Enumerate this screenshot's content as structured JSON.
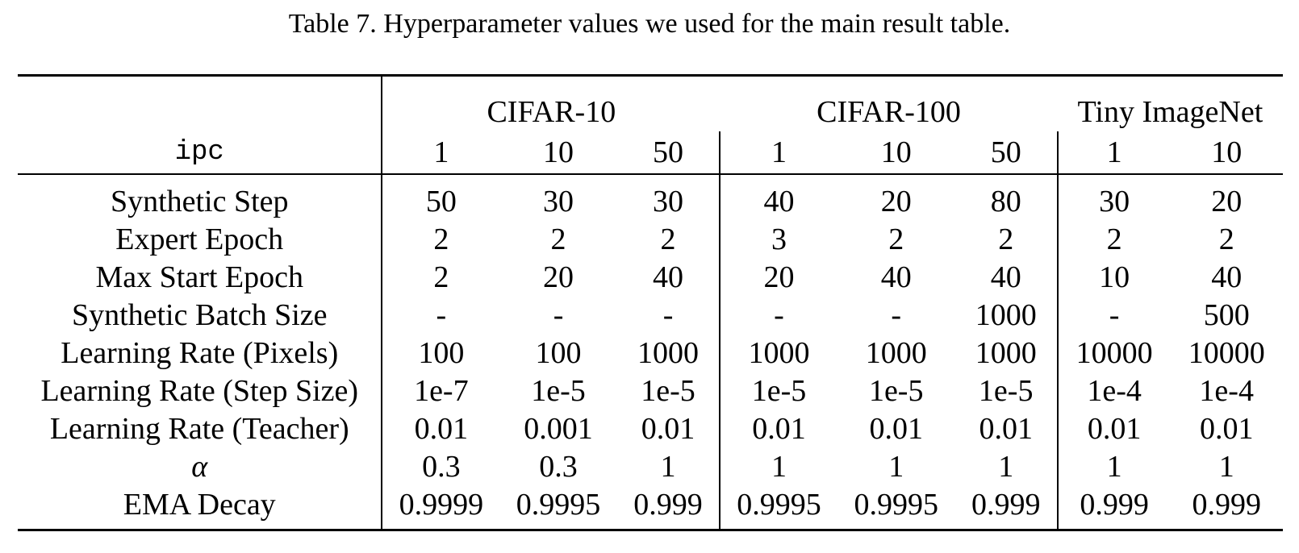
{
  "caption": "Table 7. Hyperparameter values we used for the main result table.",
  "header": {
    "ipc_label": "ipc",
    "datasets": [
      "CIFAR-10",
      "CIFAR-100",
      "Tiny ImageNet"
    ],
    "ipc_values": [
      "1",
      "10",
      "50",
      "1",
      "10",
      "50",
      "1",
      "10"
    ]
  },
  "rows": [
    {
      "label": "Synthetic Step",
      "values": [
        "50",
        "30",
        "30",
        "40",
        "20",
        "80",
        "30",
        "20"
      ]
    },
    {
      "label": "Expert Epoch",
      "values": [
        "2",
        "2",
        "2",
        "3",
        "2",
        "2",
        "2",
        "2"
      ]
    },
    {
      "label": "Max Start Epoch",
      "values": [
        "2",
        "20",
        "40",
        "20",
        "40",
        "40",
        "10",
        "40"
      ]
    },
    {
      "label": "Synthetic Batch Size",
      "values": [
        "-",
        "-",
        "-",
        "-",
        "-",
        "1000",
        "-",
        "500"
      ]
    },
    {
      "label": "Learning Rate (Pixels)",
      "values": [
        "100",
        "100",
        "1000",
        "1000",
        "1000",
        "1000",
        "10000",
        "10000"
      ]
    },
    {
      "label": "Learning Rate (Step Size)",
      "values": [
        "1e-7",
        "1e-5",
        "1e-5",
        "1e-5",
        "1e-5",
        "1e-5",
        "1e-4",
        "1e-4"
      ]
    },
    {
      "label": "Learning Rate (Teacher)",
      "values": [
        "0.01",
        "0.001",
        "0.01",
        "0.01",
        "0.01",
        "0.01",
        "0.01",
        "0.01"
      ]
    },
    {
      "label": "α",
      "values": [
        "0.3",
        "0.3",
        "1",
        "1",
        "1",
        "1",
        "1",
        "1"
      ]
    },
    {
      "label": "EMA Decay",
      "values": [
        "0.9999",
        "0.9995",
        "0.999",
        "0.9995",
        "0.9995",
        "0.999",
        "0.999",
        "0.999"
      ]
    }
  ]
}
